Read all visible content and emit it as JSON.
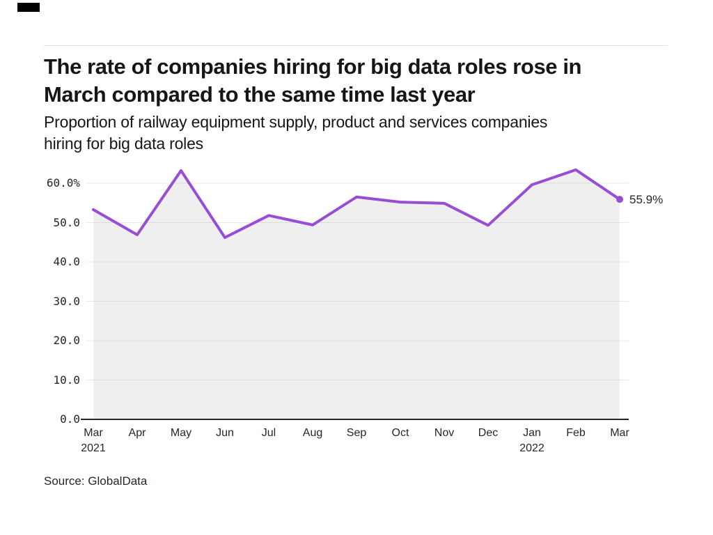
{
  "header": {
    "title": "The rate of companies hiring for big data roles rose in\nMarch compared to the same time last year",
    "subtitle": "Proportion of railway equipment supply, product and services companies\nhiring for big data roles"
  },
  "footer": {
    "source": "Source: GlobalData"
  },
  "chart_data": {
    "type": "line",
    "title": "The rate of companies hiring for big data roles rose in March compared to the same time last year",
    "subtitle": "Proportion of railway equipment supply, product and services companies hiring for big data roles",
    "x_labels": [
      "Mar",
      "Apr",
      "May",
      "Jun",
      "Jul",
      "Aug",
      "Sep",
      "Oct",
      "Nov",
      "Dec",
      "Jan",
      "Feb",
      "Mar"
    ],
    "year_markers": [
      {
        "index": 0,
        "label": "2021"
      },
      {
        "index": 10,
        "label": "2022"
      }
    ],
    "values": [
      53.3,
      46.9,
      63.2,
      46.2,
      51.8,
      49.4,
      56.5,
      55.2,
      54.9,
      49.3,
      59.6,
      63.4,
      55.9
    ],
    "unit": "%",
    "yticks": [
      {
        "label": "0.0",
        "value": 0
      },
      {
        "label": "10.0",
        "value": 10
      },
      {
        "label": "20.0",
        "value": 20
      },
      {
        "label": "30.0",
        "value": 30
      },
      {
        "label": "40.0",
        "value": 40
      },
      {
        "label": "50.0",
        "value": 50
      },
      {
        "label": "60.0%",
        "value": 60
      }
    ],
    "ylim": [
      0,
      66
    ],
    "grid": "horizontal",
    "legend": "none",
    "area_fill": true,
    "end_annotation": "55.9%",
    "source": "Source: GlobalData",
    "colors": {
      "line": "#994dd6",
      "area": "#efefef",
      "grid": "rgba(0,0,0,0.08)",
      "axis": "#21272a",
      "text": "#161616"
    }
  }
}
